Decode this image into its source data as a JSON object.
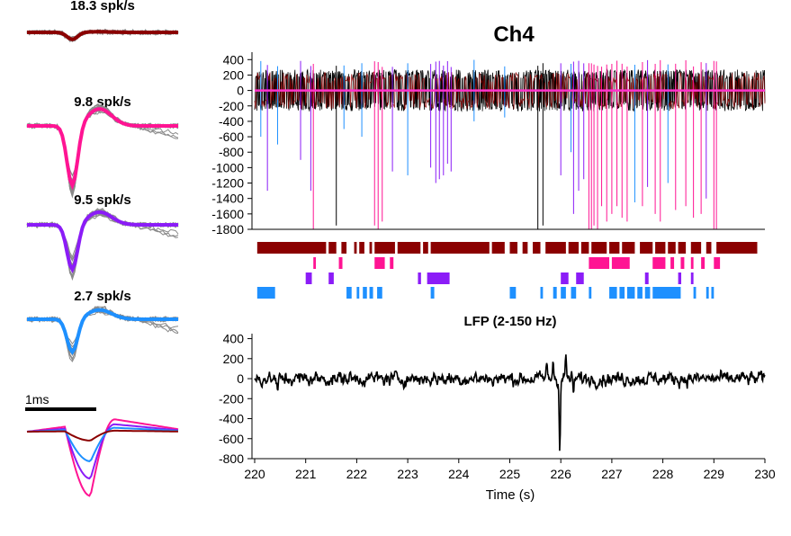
{
  "chart_data": [
    {
      "type": "waveform-panel",
      "panel": "unit-1-waveforms",
      "title": "18.3 spk/s",
      "color": "#8b0000",
      "trough": -0.35,
      "noise_tail": false
    },
    {
      "type": "waveform-panel",
      "panel": "unit-2-waveforms",
      "title": "9.8 spk/s",
      "color": "#ff1493",
      "trough": -1.0,
      "noise_tail": true
    },
    {
      "type": "waveform-panel",
      "panel": "unit-3-waveforms",
      "title": "9.5 spk/s",
      "color": "#8b1cf7",
      "trough": -0.75,
      "noise_tail": true
    },
    {
      "type": "waveform-panel",
      "panel": "unit-4-waveforms",
      "title": "2.7 spk/s",
      "color": "#1e90ff",
      "trough": -0.55,
      "noise_tail": true
    },
    {
      "type": "line",
      "panel": "mean-waveform-overlay",
      "scalebar_label": "1ms",
      "series": [
        {
          "color": "#ff1493",
          "peak": 0.25,
          "trough": -1.3
        },
        {
          "color": "#8b1cf7",
          "peak": 0.15,
          "trough": -0.95
        },
        {
          "color": "#1e90ff",
          "peak": 0.08,
          "trough": -0.6
        },
        {
          "color": "#8b0000",
          "peak": 0.02,
          "trough": -0.18
        }
      ]
    },
    {
      "type": "line",
      "panel": "raw-trace",
      "title": "Ch4",
      "xlim": [
        220,
        230
      ],
      "ylim": [
        -1800,
        450
      ],
      "yticks": [
        400,
        200,
        0,
        -200,
        -400,
        -600,
        -800,
        -1000,
        -1200,
        -1400,
        -1600,
        -1800
      ],
      "trace_color": "#000000",
      "threshold_color": "#ff33cc",
      "spikes": [
        {
          "t": 220.12,
          "amp": -600,
          "color": "#1e90ff"
        },
        {
          "t": 220.25,
          "amp": -1300,
          "color": "#8b1cf7"
        },
        {
          "t": 220.45,
          "amp": -700,
          "color": "#1e90ff"
        },
        {
          "t": 220.9,
          "amp": -900,
          "color": "#8b1cf7"
        },
        {
          "t": 221.1,
          "amp": -1300,
          "color": "#8b1cf7"
        },
        {
          "t": 221.15,
          "amp": -1800,
          "color": "#ff1493"
        },
        {
          "t": 221.6,
          "amp": -1750,
          "color": "#000000"
        },
        {
          "t": 221.75,
          "amp": -500,
          "color": "#1e90ff"
        },
        {
          "t": 222.1,
          "amp": -600,
          "color": "#1e90ff"
        },
        {
          "t": 222.35,
          "amp": -1750,
          "color": "#ff1493"
        },
        {
          "t": 222.42,
          "amp": -1800,
          "color": "#ff1493"
        },
        {
          "t": 222.5,
          "amp": -1700,
          "color": "#ff1493"
        },
        {
          "t": 222.7,
          "amp": -1050,
          "color": "#8b1cf7"
        },
        {
          "t": 223.0,
          "amp": -1100,
          "color": "#1e90ff"
        },
        {
          "t": 223.45,
          "amp": -1000,
          "color": "#8b1cf7"
        },
        {
          "t": 223.55,
          "amp": -1200,
          "color": "#8b1cf7"
        },
        {
          "t": 223.62,
          "amp": -1150,
          "color": "#8b1cf7"
        },
        {
          "t": 223.7,
          "amp": -1100,
          "color": "#8b1cf7"
        },
        {
          "t": 223.78,
          "amp": -950,
          "color": "#8b1cf7"
        },
        {
          "t": 223.85,
          "amp": -1050,
          "color": "#8b1cf7"
        },
        {
          "t": 224.3,
          "amp": -400,
          "color": "#1e90ff"
        },
        {
          "t": 224.9,
          "amp": -350,
          "color": "#1e90ff"
        },
        {
          "t": 225.55,
          "amp": -1800,
          "color": "#000000"
        },
        {
          "t": 225.65,
          "amp": -1750,
          "color": "#000000"
        },
        {
          "t": 226.0,
          "amp": -1100,
          "color": "#8b1cf7"
        },
        {
          "t": 226.2,
          "amp": -800,
          "color": "#1e90ff"
        },
        {
          "t": 226.25,
          "amp": -1600,
          "color": "#8b1cf7"
        },
        {
          "t": 226.35,
          "amp": -1300,
          "color": "#8b1cf7"
        },
        {
          "t": 226.45,
          "amp": -1150,
          "color": "#8b1cf7"
        },
        {
          "t": 226.55,
          "amp": -1800,
          "color": "#ff1493"
        },
        {
          "t": 226.6,
          "amp": -1800,
          "color": "#ff1493"
        },
        {
          "t": 226.65,
          "amp": -1750,
          "color": "#ff1493"
        },
        {
          "t": 226.72,
          "amp": -1800,
          "color": "#ff1493"
        },
        {
          "t": 226.8,
          "amp": -1500,
          "color": "#ff1493"
        },
        {
          "t": 226.9,
          "amp": -1700,
          "color": "#ff1493"
        },
        {
          "t": 227.0,
          "amp": -1600,
          "color": "#ff1493"
        },
        {
          "t": 227.1,
          "amp": -1500,
          "color": "#ff1493"
        },
        {
          "t": 227.2,
          "amp": -1650,
          "color": "#ff1493"
        },
        {
          "t": 227.3,
          "amp": -1700,
          "color": "#ff1493"
        },
        {
          "t": 227.45,
          "amp": -1450,
          "color": "#1e90ff"
        },
        {
          "t": 227.6,
          "amp": -1500,
          "color": "#ff1493"
        },
        {
          "t": 227.7,
          "amp": -1250,
          "color": "#8b1cf7"
        },
        {
          "t": 227.85,
          "amp": -1600,
          "color": "#ff1493"
        },
        {
          "t": 227.95,
          "amp": -1700,
          "color": "#ff1493"
        },
        {
          "t": 228.1,
          "amp": -1200,
          "color": "#1e90ff"
        },
        {
          "t": 228.25,
          "amp": -1550,
          "color": "#ff1493"
        },
        {
          "t": 228.45,
          "amp": -1500,
          "color": "#ff1493"
        },
        {
          "t": 228.6,
          "amp": -1650,
          "color": "#ff1493"
        },
        {
          "t": 228.75,
          "amp": -1600,
          "color": "#ff1493"
        },
        {
          "t": 228.85,
          "amp": -1400,
          "color": "#8b1cf7"
        },
        {
          "t": 229.0,
          "amp": -1800,
          "color": "#ff1493"
        },
        {
          "t": 229.05,
          "amp": -1800,
          "color": "#ff1493"
        }
      ]
    },
    {
      "type": "raster",
      "panel": "spike-raster",
      "xlim": [
        220,
        230
      ],
      "rows": [
        {
          "color": "#8b0000",
          "segments": [
            [
              220.05,
              221.4
            ],
            [
              221.45,
              221.6
            ],
            [
              221.7,
              221.8
            ],
            [
              221.95,
              222.0
            ],
            [
              222.05,
              222.15
            ],
            [
              222.25,
              222.3
            ],
            [
              222.35,
              222.75
            ],
            [
              222.8,
              223.25
            ],
            [
              223.3,
              223.4
            ],
            [
              223.45,
              224.6
            ],
            [
              224.65,
              224.9
            ],
            [
              225.0,
              225.15
            ],
            [
              225.25,
              225.35
            ],
            [
              225.45,
              225.6
            ],
            [
              225.7,
              226.1
            ],
            [
              226.15,
              226.35
            ],
            [
              226.4,
              226.55
            ],
            [
              226.6,
              226.9
            ],
            [
              226.95,
              227.15
            ],
            [
              227.2,
              227.45
            ],
            [
              227.55,
              227.8
            ],
            [
              227.85,
              228.05
            ],
            [
              228.1,
              228.25
            ],
            [
              228.3,
              228.45
            ],
            [
              228.55,
              228.75
            ],
            [
              228.85,
              228.95
            ],
            [
              229.05,
              229.85
            ]
          ]
        },
        {
          "color": "#ff1493",
          "segments": [
            [
              221.15,
              221.2
            ],
            [
              221.65,
              221.72
            ],
            [
              222.35,
              222.55
            ],
            [
              222.65,
              222.72
            ],
            [
              226.55,
              226.95
            ],
            [
              227.0,
              227.35
            ],
            [
              227.8,
              228.05
            ],
            [
              228.15,
              228.22
            ],
            [
              228.35,
              228.42
            ],
            [
              228.55,
              228.6
            ],
            [
              228.75,
              228.82
            ],
            [
              229.0,
              229.12
            ]
          ]
        },
        {
          "color": "#8b1cf7",
          "segments": [
            [
              221.0,
              221.12
            ],
            [
              221.45,
              221.55
            ],
            [
              223.2,
              223.26
            ],
            [
              223.38,
              223.82
            ],
            [
              226.0,
              226.15
            ],
            [
              226.3,
              226.45
            ],
            [
              227.65,
              227.72
            ],
            [
              228.3,
              228.36
            ],
            [
              228.55,
              228.6
            ]
          ]
        },
        {
          "color": "#1e90ff",
          "segments": [
            [
              220.05,
              220.4
            ],
            [
              221.8,
              221.9
            ],
            [
              222.0,
              222.05
            ],
            [
              222.12,
              222.2
            ],
            [
              222.25,
              222.32
            ],
            [
              222.4,
              222.5
            ],
            [
              223.45,
              223.52
            ],
            [
              225.0,
              225.12
            ],
            [
              225.6,
              225.65
            ],
            [
              225.85,
              225.92
            ],
            [
              226.0,
              226.1
            ],
            [
              226.2,
              226.3
            ],
            [
              226.55,
              226.6
            ],
            [
              226.95,
              227.1
            ],
            [
              227.15,
              227.25
            ],
            [
              227.3,
              227.45
            ],
            [
              227.5,
              227.6
            ],
            [
              227.65,
              227.75
            ],
            [
              227.8,
              228.35
            ],
            [
              228.6,
              228.65
            ],
            [
              228.85,
              228.9
            ],
            [
              228.95,
              229.0
            ]
          ]
        }
      ]
    },
    {
      "type": "line",
      "panel": "lfp-trace",
      "title": "LFP (2-150 Hz)",
      "xlabel": "Time (s)",
      "xlim": [
        220,
        230
      ],
      "ylim": [
        -800,
        450
      ],
      "xticks": [
        220,
        221,
        222,
        223,
        224,
        225,
        226,
        227,
        228,
        229,
        230
      ],
      "yticks": [
        400,
        200,
        0,
        -200,
        -400,
        -600,
        -800
      ],
      "trace_color": "#000000",
      "events": [
        {
          "t": 220.45,
          "v": -170
        },
        {
          "t": 225.72,
          "v": 140
        },
        {
          "t": 225.85,
          "v": 190
        },
        {
          "t": 225.98,
          "v": -680
        },
        {
          "t": 226.1,
          "v": 220
        },
        {
          "t": 226.25,
          "v": -150
        }
      ]
    }
  ]
}
